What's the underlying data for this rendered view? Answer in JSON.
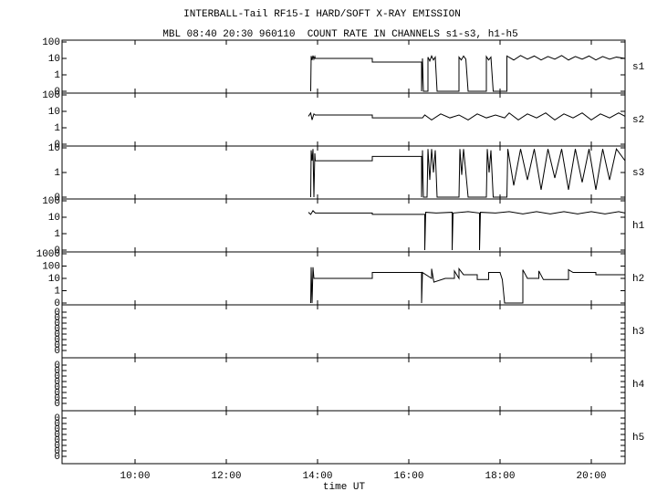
{
  "chart_data": {
    "type": "line",
    "title": "INTERBALL-Tail RF15-I HARD/SOFT X-RAY EMISSION",
    "subtitle": "MBL 08:40 20:30 960110  COUNT RATE IN CHANNELS s1-s3, h1-h5",
    "xlabel": "time UT",
    "xlim": [
      8.4,
      20.74
    ],
    "xticks": [
      {
        "value": 10,
        "label": "10:00"
      },
      {
        "value": 12,
        "label": "12:00"
      },
      {
        "value": 14,
        "label": "14:00"
      },
      {
        "value": 16,
        "label": "16:00"
      },
      {
        "value": 18,
        "label": "18:00"
      },
      {
        "value": 20,
        "label": "20:00"
      }
    ],
    "log_y": true,
    "color": "#000000",
    "panels": [
      {
        "name": "s1",
        "ylim": [
          0.1,
          100
        ],
        "yticks": [
          100,
          10,
          1,
          {
            "value": 0.1,
            "label": "0"
          }
        ],
        "x": [
          13.85,
          13.86,
          13.88,
          13.9,
          13.92,
          13.94,
          13.95,
          15.2,
          15.2,
          16.28,
          16.28,
          16.3,
          16.32,
          16.42,
          16.42,
          16.46,
          16.5,
          16.54,
          16.58,
          16.62,
          17.1,
          17.1,
          17.15,
          17.2,
          17.25,
          17.3,
          17.7,
          17.7,
          17.75,
          17.8,
          17.85,
          18.15,
          18.15,
          18.3,
          18.45,
          18.6,
          18.75,
          18.9,
          19.05,
          19.2,
          19.35,
          19.5,
          19.65,
          19.8,
          19.95,
          20.1,
          20.25,
          20.4,
          20.55,
          20.74
        ],
        "values": [
          0.1,
          14,
          8,
          15,
          9,
          13,
          10,
          10,
          6,
          6,
          0.1,
          10,
          0.1,
          0.1,
          12,
          7,
          14,
          8,
          12,
          0.1,
          0.1,
          12,
          8,
          14,
          9,
          0.1,
          0.1,
          13,
          8,
          12,
          0.1,
          0.1,
          14,
          8,
          15,
          9,
          14,
          8,
          13,
          9,
          15,
          8,
          13,
          9,
          14,
          8,
          13,
          9,
          12,
          10
        ]
      },
      {
        "name": "s2",
        "ylim": [
          0.1,
          100
        ],
        "yticks": [
          100,
          10,
          1,
          {
            "value": 0.1,
            "label": "0"
          }
        ],
        "x": [
          13.8,
          13.85,
          13.88,
          13.92,
          13.95,
          15.2,
          15.2,
          16.3,
          16.35,
          16.5,
          16.7,
          16.9,
          17.1,
          17.3,
          17.5,
          17.7,
          17.9,
          18.1,
          18.2,
          18.4,
          18.6,
          18.8,
          19.0,
          19.2,
          19.4,
          19.6,
          19.8,
          20.0,
          20.2,
          20.4,
          20.6,
          20.74
        ],
        "values": [
          5,
          8,
          3,
          7,
          6,
          6,
          4,
          4,
          6,
          3,
          7,
          4,
          6,
          3,
          7,
          4,
          6,
          4,
          8,
          3,
          7,
          4,
          8,
          3,
          7,
          4,
          8,
          3,
          7,
          4,
          8,
          5
        ]
      },
      {
        "name": "s3",
        "ylim": [
          0.1,
          10
        ],
        "yticks": [
          10,
          1,
          {
            "value": 0.1,
            "label": "0"
          }
        ],
        "x": [
          13.85,
          13.86,
          13.88,
          13.9,
          13.92,
          13.94,
          13.95,
          15.2,
          15.2,
          16.28,
          16.28,
          16.3,
          16.32,
          16.4,
          16.42,
          16.46,
          16.5,
          16.54,
          16.58,
          16.62,
          17.1,
          17.12,
          17.16,
          17.2,
          17.25,
          17.3,
          17.7,
          17.72,
          17.76,
          17.8,
          17.85,
          18.15,
          18.17,
          18.3,
          18.45,
          18.6,
          18.75,
          18.9,
          19.05,
          19.2,
          19.35,
          19.5,
          19.65,
          19.8,
          19.95,
          20.1,
          20.25,
          20.4,
          20.55,
          20.74
        ],
        "values": [
          0.1,
          8,
          3,
          9,
          0.1,
          6,
          3,
          3,
          4.5,
          4.5,
          0.1,
          8,
          0.1,
          0.1,
          9,
          0.5,
          9,
          1,
          8,
          0.1,
          0.1,
          9,
          0.8,
          9,
          1,
          0.1,
          0.1,
          9,
          1,
          8,
          0.1,
          0.1,
          9,
          0.3,
          9,
          0.5,
          9,
          0.2,
          9,
          0.6,
          9,
          0.2,
          9,
          0.4,
          9,
          0.2,
          9,
          0.5,
          9,
          3
        ]
      },
      {
        "name": "h1",
        "ylim": [
          0.1,
          100
        ],
        "yticks": [
          100,
          10,
          1,
          {
            "value": 0.1,
            "label": "0"
          }
        ],
        "x": [
          13.8,
          13.85,
          13.9,
          13.95,
          15.2,
          15.2,
          16.3,
          16.35,
          16.35,
          16.37,
          16.6,
          16.95,
          16.95,
          16.97,
          17.3,
          17.55,
          17.55,
          17.57,
          17.9,
          18.2,
          18.5,
          18.8,
          19.1,
          19.4,
          19.7,
          20.0,
          20.3,
          20.6,
          20.74
        ],
        "values": [
          20,
          15,
          25,
          18,
          18,
          15,
          15,
          15,
          0.1,
          20,
          18,
          20,
          0.1,
          18,
          22,
          18,
          0.1,
          20,
          18,
          22,
          16,
          22,
          16,
          22,
          16,
          22,
          16,
          22,
          18
        ]
      },
      {
        "name": "h2",
        "ylim": [
          0.1,
          1000
        ],
        "yticks": [
          1000,
          100,
          10,
          1,
          {
            "value": 0.1,
            "label": "0"
          }
        ],
        "x": [
          13.85,
          13.86,
          13.88,
          13.9,
          13.92,
          15.2,
          15.2,
          16.28,
          16.28,
          16.3,
          16.5,
          16.5,
          16.55,
          16.8,
          17.0,
          17.0,
          17.1,
          17.1,
          17.2,
          17.5,
          17.5,
          17.75,
          17.75,
          18.0,
          18.05,
          18.1,
          18.5,
          18.5,
          18.6,
          18.85,
          18.85,
          18.95,
          19.5,
          19.5,
          19.6,
          20.1,
          20.1,
          20.74
        ],
        "values": [
          0.1,
          80,
          0.1,
          80,
          10,
          10,
          30,
          30,
          0.1,
          30,
          10,
          60,
          5,
          10,
          10,
          40,
          10,
          60,
          20,
          20,
          8,
          8,
          30,
          30,
          8,
          0.1,
          0.1,
          50,
          10,
          10,
          40,
          8,
          8,
          50,
          30,
          30,
          20,
          20
        ]
      },
      {
        "name": "h3",
        "ylim": [
          1e-09,
          1
        ],
        "yticks": [
          {
            "value": 0.1,
            "label": "0"
          },
          {
            "value": 0.01,
            "label": "0"
          },
          {
            "value": 0.001,
            "label": "0"
          },
          {
            "value": 0.0001,
            "label": "0"
          },
          {
            "value": 1e-05,
            "label": "0"
          },
          {
            "value": 1e-06,
            "label": "0"
          },
          {
            "value": 1e-07,
            "label": "0"
          },
          {
            "value": 1e-08,
            "label": "0"
          }
        ],
        "x": [],
        "values": []
      },
      {
        "name": "h4",
        "ylim": [
          1e-09,
          1
        ],
        "yticks": [
          {
            "value": 0.1,
            "label": "0"
          },
          {
            "value": 0.01,
            "label": "0"
          },
          {
            "value": 0.001,
            "label": "0"
          },
          {
            "value": 0.0001,
            "label": "0"
          },
          {
            "value": 1e-05,
            "label": "0"
          },
          {
            "value": 1e-06,
            "label": "0"
          },
          {
            "value": 1e-07,
            "label": "0"
          },
          {
            "value": 1e-08,
            "label": "0"
          }
        ],
        "x": [],
        "values": []
      },
      {
        "name": "h5",
        "ylim": [
          1e-09,
          1
        ],
        "yticks": [
          {
            "value": 0.1,
            "label": "0"
          },
          {
            "value": 0.01,
            "label": "0"
          },
          {
            "value": 0.001,
            "label": "0"
          },
          {
            "value": 0.0001,
            "label": "0"
          },
          {
            "value": 1e-05,
            "label": "0"
          },
          {
            "value": 1e-06,
            "label": "0"
          },
          {
            "value": 1e-07,
            "label": "0"
          },
          {
            "value": 1e-08,
            "label": "0"
          }
        ],
        "x": [],
        "values": []
      }
    ]
  }
}
